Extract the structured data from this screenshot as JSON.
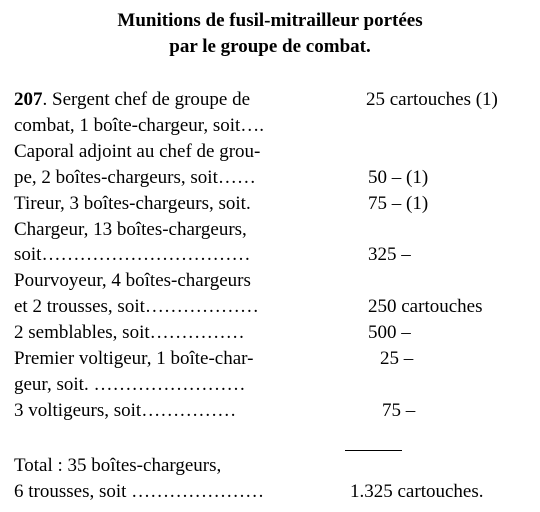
{
  "title": [
    "Munitions de fusil-mitrailleur portées",
    "par le groupe de combat."
  ],
  "paragraph": {
    "number": "207",
    "lines": [
      {
        "left": ". Sergent chef de groupe de",
        "right": "25 cartouches (1)"
      },
      {
        "left": "combat, 1 boîte-chargeur, soit…."
      },
      {
        "left": "Caporal adjoint au chef de grou-"
      },
      {
        "left": "pe, 2 boîtes-chargeurs, soit……",
        "right": "50 – (1)"
      },
      {
        "left": "Tireur, 3 boîtes-chargeurs, soit.",
        "right": "75 – (1)"
      },
      {
        "left": "Chargeur, 13 boîtes-chargeurs,"
      },
      {
        "left": "soit……………………………",
        "right": "325 –"
      },
      {
        "left": "Pourvoyeur, 4 boîtes-chargeurs"
      },
      {
        "left": "et 2 trousses, soit………………",
        "right": "250 cartouches"
      },
      {
        "left": "2 semblables, soit……………",
        "right": "500 –"
      },
      {
        "left": "Premier voltigeur, 1 boîte-char-",
        "right": "25 –"
      },
      {
        "left": "geur, soit. ……………………"
      },
      {
        "left": "3 voltigeurs, soit……………",
        "right": "75 –"
      }
    ]
  },
  "total": [
    {
      "left": "Total : 35 boîtes-chargeurs,"
    },
    {
      "left": "6 trousses, soit …………………",
      "right": "1.325 cartouches."
    }
  ]
}
